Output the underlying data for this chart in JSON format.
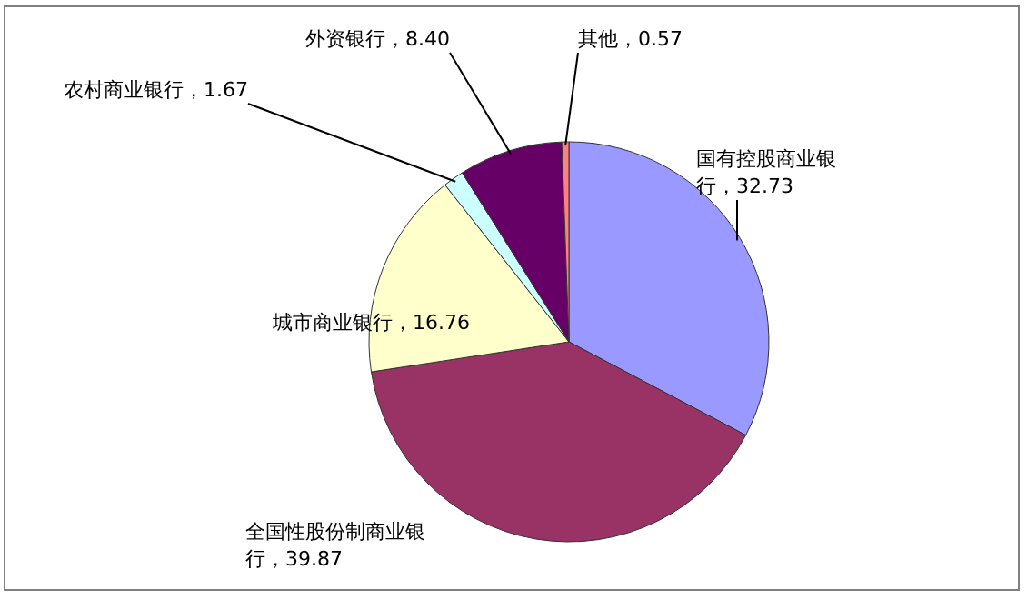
{
  "chart_data": {
    "type": "pie",
    "categories": [
      "国有控股商业银行",
      "全国性股份制商业银行",
      "城市商业银行",
      "农村商业银行",
      "外资银行",
      "其他"
    ],
    "values": [
      32.73,
      39.87,
      16.76,
      1.67,
      8.4,
      0.57
    ],
    "value_labels": [
      "32.73",
      "39.87",
      "16.76",
      "1.67",
      "8.40",
      "0.57"
    ],
    "colors": [
      "#9999ff",
      "#993366",
      "#ffffcc",
      "#ccffff",
      "#660066",
      "#ff8080"
    ]
  }
}
